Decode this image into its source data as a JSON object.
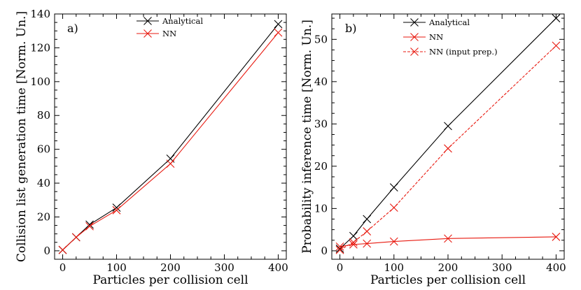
{
  "chart_data": [
    {
      "type": "line",
      "panel_label": "a)",
      "xlabel": "Particles per collision cell",
      "ylabel": "Collision list generation time [Norm. Un.]",
      "xlim": [
        -15,
        415
      ],
      "ylim": [
        -5,
        140
      ],
      "xticks": [
        0,
        100,
        200,
        300,
        400
      ],
      "yticks": [
        0,
        20,
        40,
        60,
        80,
        100,
        120,
        140
      ],
      "legend_position": "top-center",
      "series": [
        {
          "name": "Analytical",
          "color": "#000000",
          "style": "solid",
          "marker": "x",
          "x": [
            0,
            25,
            50,
            100,
            200,
            400
          ],
          "y": [
            0.5,
            8,
            15.5,
            25.5,
            54.5,
            134
          ]
        },
        {
          "name": "NN",
          "color": "#e8190f",
          "style": "solid",
          "marker": "x",
          "x": [
            0,
            25,
            50,
            100,
            200,
            400
          ],
          "y": [
            0.5,
            8,
            14.5,
            24,
            51.5,
            129
          ]
        }
      ]
    },
    {
      "type": "line",
      "panel_label": "b)",
      "xlabel": "Particles per collision cell",
      "ylabel": "Probability inference time [Norm. Un.]",
      "xlim": [
        -15,
        415
      ],
      "ylim": [
        -2,
        56
      ],
      "xticks": [
        0,
        100,
        200,
        300,
        400
      ],
      "yticks": [
        0,
        10,
        20,
        30,
        40,
        50
      ],
      "legend_position": "top-center",
      "series": [
        {
          "name": "Analytical",
          "color": "#000000",
          "style": "solid",
          "marker": "x",
          "x": [
            0,
            25,
            50,
            100,
            200,
            400
          ],
          "y": [
            0.5,
            3.5,
            7.5,
            15,
            29.5,
            55
          ]
        },
        {
          "name": "NN",
          "color": "#e8190f",
          "style": "solid",
          "marker": "x",
          "x": [
            0,
            25,
            50,
            100,
            200,
            400
          ],
          "y": [
            1,
            1.5,
            1.7,
            2.2,
            2.9,
            3.3
          ]
        },
        {
          "name": "NN (input prep.)",
          "color": "#e8190f",
          "style": "dashed",
          "marker": "x",
          "x": [
            0,
            25,
            50,
            100,
            200,
            400
          ],
          "y": [
            0.2,
            2.0,
            4.6,
            10.2,
            24.2,
            48.5
          ]
        }
      ]
    }
  ]
}
